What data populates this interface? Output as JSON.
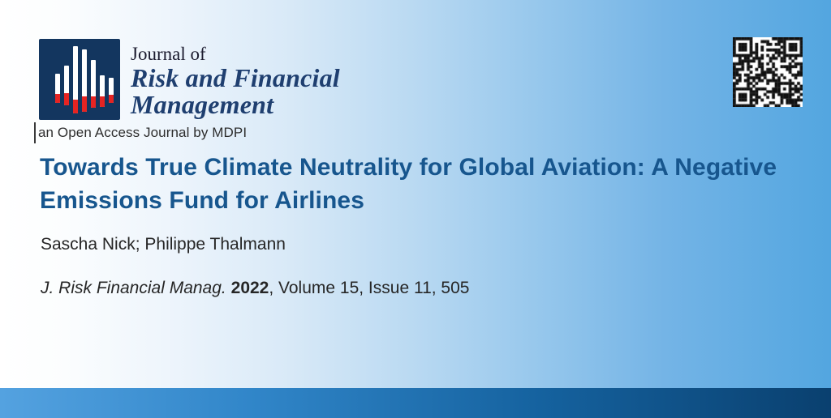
{
  "journal": {
    "name_prefix": "Journal of",
    "name_lines": [
      "Risk and Financial",
      "Management"
    ],
    "tagline": "an Open Access Journal by MDPI",
    "logo_icon": "bar-chart-logo",
    "logo_colors": {
      "background": "#13365f",
      "bars": "#ffffff",
      "accent": "#e62422"
    }
  },
  "article": {
    "title_lines": [
      "Towards True Climate Neutrality for Global Aviation: A Negative",
      "Emissions Fund for Airlines"
    ],
    "authors": "Sascha Nick; Philippe Thalmann",
    "citation_journal": "J. Risk Financial Manag.",
    "citation_year": "2022",
    "citation_rest": ", Volume 15, Issue 11, 505"
  },
  "qr_icon": "qr-code",
  "colors": {
    "title_blue": "#17568e",
    "journal_navy": "#1f3f70",
    "body_text": "#262626",
    "background_right_blue": "#53a6e0",
    "bottom_bar_left": "#54a2e0",
    "bottom_bar_right": "#0a406f"
  }
}
